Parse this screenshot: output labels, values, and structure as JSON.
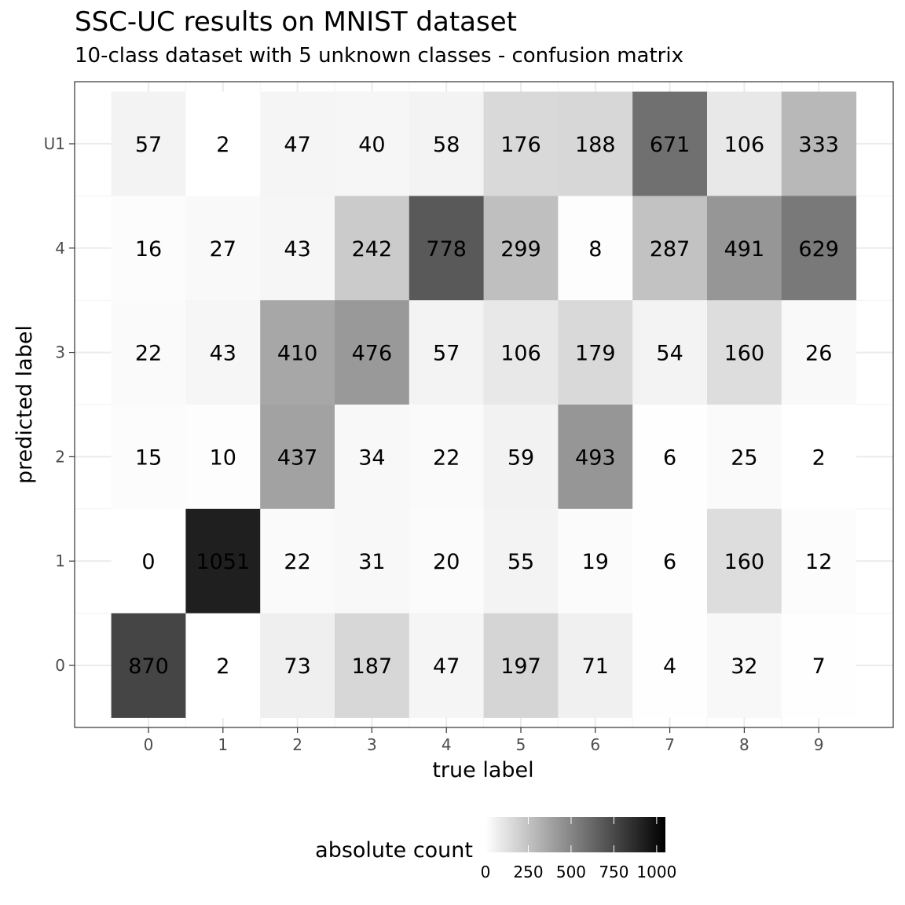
{
  "title": "SSC-UC results on MNIST dataset",
  "subtitle": "10-class dataset with 5 unknown classes - confusion matrix",
  "chart_data": {
    "type": "heatmap",
    "xlabel": "true label",
    "ylabel": "predicted label",
    "x_categories": [
      "0",
      "1",
      "2",
      "3",
      "4",
      "5",
      "6",
      "7",
      "8",
      "9"
    ],
    "y_categories_top_to_bottom": [
      "U1",
      "4",
      "3",
      "2",
      "1",
      "0"
    ],
    "values": [
      [
        57,
        2,
        47,
        40,
        58,
        176,
        188,
        671,
        106,
        333
      ],
      [
        16,
        27,
        43,
        242,
        778,
        299,
        8,
        287,
        491,
        629
      ],
      [
        22,
        43,
        410,
        476,
        57,
        106,
        179,
        54,
        160,
        26
      ],
      [
        15,
        10,
        437,
        34,
        22,
        59,
        493,
        6,
        25,
        2
      ],
      [
        0,
        1051,
        22,
        31,
        20,
        55,
        19,
        6,
        160,
        12
      ],
      [
        870,
        2,
        73,
        187,
        47,
        197,
        71,
        4,
        32,
        7
      ]
    ],
    "color_scale": {
      "low": "#ffffff",
      "high": "#000000",
      "min": 0,
      "max": 1051
    },
    "legend": {
      "title": "absolute count",
      "position": "bottom",
      "ticks": [
        0,
        250,
        500,
        750,
        1000
      ],
      "tick_labels": [
        "0",
        "250",
        "500",
        "750",
        "1000"
      ]
    },
    "grid": true
  }
}
